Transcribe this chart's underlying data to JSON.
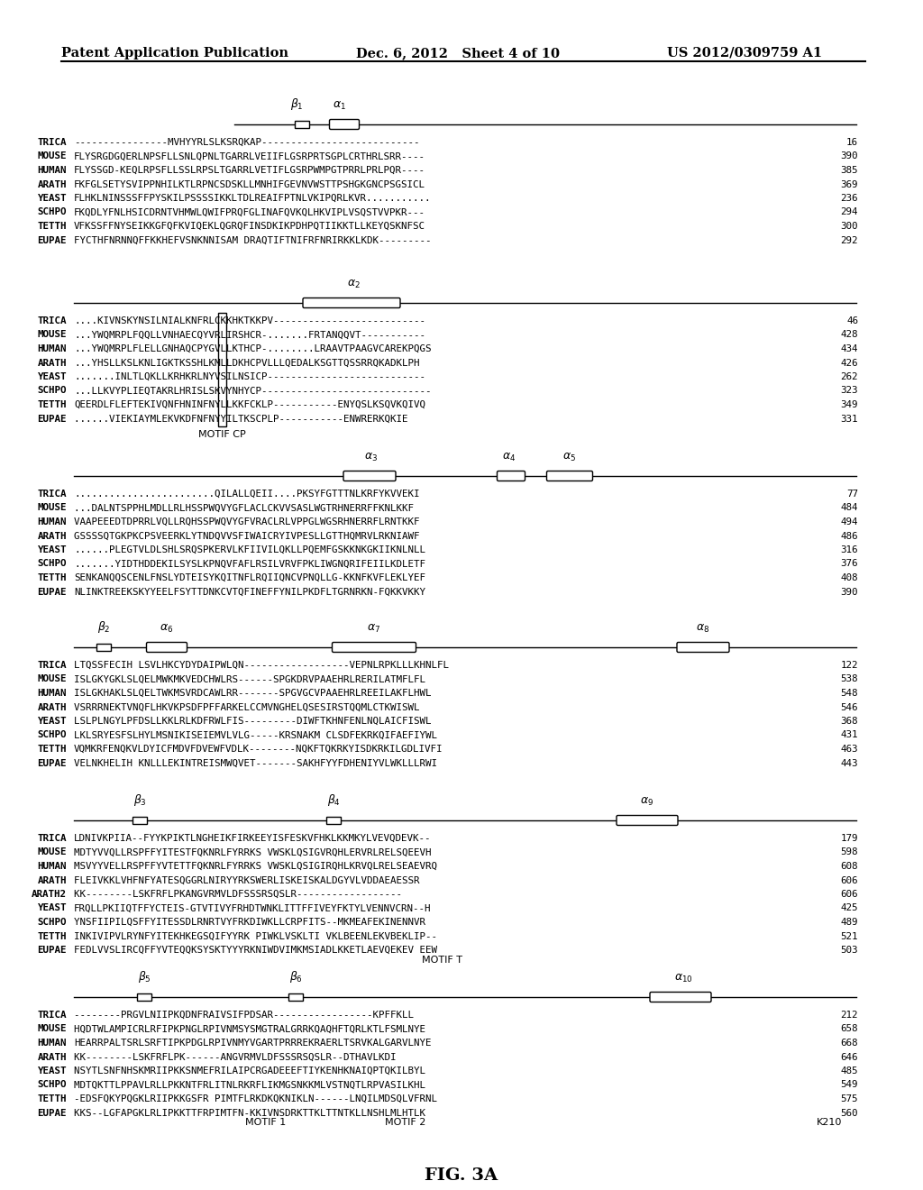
{
  "header_left": "Patent Application Publication",
  "header_center": "Dec. 6, 2012   Sheet 4 of 10",
  "header_right": "US 2012/0309759 A1",
  "figure_label": "FIG. 3A",
  "block1_seqs": [
    [
      "TRICA",
      "----------------MVHYYRLSLKSRQKAP---------------------------",
      "16"
    ],
    [
      "MOUSE",
      "FLYSRGDGQERLNPSFLLSNLQPNLTGARRLVEIIFLGSRPRTSGPLCRTHRLSRR----",
      "390"
    ],
    [
      "HUMAN",
      "FLYSSGD-KEQLRPSFLLSSLRPSLTGARRLVETIFLGSRPWMPGTPRRLPRLPQR----",
      "385"
    ],
    [
      "ARATH",
      "FKFGLSETYSVIPPNHILKTLRPNCSDSKLLMNHIFGEVNVWSTTPSHGKGNCPSGSICL",
      "369"
    ],
    [
      "YEAST",
      "FLHKLNINSSSFFPYSKILPSSSSIKKLTDLREAIFPTNLVKIPQRLKVR...........",
      "236"
    ],
    [
      "SCHPO",
      "FKQDLYFNLHSICDRNTVHMWLQWIFPRQFGLINAFQVKQLHKVIPLVSQSTVVPKR---",
      "294"
    ],
    [
      "TETTH",
      "VFKSSFFNYSEIKKGFQFKVIQEKLQGRQFINSDKIKPDHPQTIIKKTLLKEYQSKNFSC",
      "300"
    ],
    [
      "EUPAE",
      "FYCTHFNRNNQFFKKHEFVSNKNNISAM DRAQTIFTNIFRFNRIRKKLKDK---------",
      "292"
    ]
  ],
  "block2_seqs": [
    [
      "TRICA",
      "....KIVNSKYNSILNIALKNFRLCKKHKTKKPV--------------------------",
      "46"
    ],
    [
      "MOUSE",
      "...YWQMRPLFQQLLVNHAECQYVRLIRSHCR-.......FRTANQQVT-----------",
      "428"
    ],
    [
      "HUMAN",
      "...YWQMRPLFLELLGNHAQCPYGVLLKTHCP-........LRAAVTPAAGVCAREKPQGS",
      "434"
    ],
    [
      "ARATH",
      "...YHSLLKSLKNLIGKTKSSHLKMLLDKHCPVLLLQEDALKSGTTQSSRRQKADKLPH",
      "426"
    ],
    [
      "YEAST",
      ".......INLTLQKLLKRHKRLNYVSILNSICP---------------------------",
      "262"
    ],
    [
      "SCHPO",
      "...LLKVYPLIEQTAKRLHRISLSKVYNHYCP-----------------------------",
      "323"
    ],
    [
      "TETTH",
      "QEERDLFLEFTEKIVQNFHNINFNYLLKKFCKLP-----------ENYQSLKSQVKQIVQ",
      "349"
    ],
    [
      "EUPAE",
      "......VIEKIAYMLEKVKDFNFNYYILTKSCPLP-----------ENWRERKQKIE   ",
      "331"
    ]
  ],
  "block3_seqs": [
    [
      "TRICA",
      "........................QILALLQEII....PKSYFGTTTNLKRFYKVVEKI",
      "77"
    ],
    [
      "MOUSE",
      "...DALNTSPPHLMDLLRLHSSPWQVYGFLACLCKVVSASLWGTRHNERRFFKNLKKF  ",
      "484"
    ],
    [
      "HUMAN",
      "VAAPEEEDTDPRRLVQLLRQHSSPWQVYGFVRACLRLVPPGLWGSRHNERRFLRNTKKF ",
      "494"
    ],
    [
      "ARATH",
      "GSSSSQTGKPKCPSVEERKLYTNDQVVSFIWAICRYIVPESLLGTTHQMRVLRKNIAWF ",
      "486"
    ],
    [
      "YEAST",
      "......PLEGTVLDLSHLSRQSPKERVLKFIIVILQKLLPQEMFGSKKNKGKIIKNLNLL",
      "316"
    ],
    [
      "SCHPO",
      ".......YIDTHDDEKILSYSLKPNQVFAFLRSILVRVFPKLIWGNQRIFEIILKDLETF",
      "376"
    ],
    [
      "TETTH",
      "SENKANQQSCENLFNSLYDTEISYKQITNFLRQIIQNCVPNQLLG-KKNFKVFLEKLYEF",
      "408"
    ],
    [
      "EUPAE",
      "NLINKTREEKSKYYEELFSYTTDNKCVTQFINEFFYNILPKDFLTGRNRKN-FQKKVKKY",
      "390"
    ]
  ],
  "block4_seqs": [
    [
      "TRICA",
      "LTQSSFECIH LSVLHKCYDYDAIPWLQN------------------VEPNLRPKLLLKHNLFL",
      "122"
    ],
    [
      "MOUSE",
      "ISLGKYGKLSLQELMWKMKVEDCHWLRS------SPGKDRVPAAEHRLRERILATMFLFL  ",
      "538"
    ],
    [
      "HUMAN",
      "ISLGKHAKLSLQELTWKMSVRDCAWLRR-------SPGVGCVPAAEHRLREEILAKFLHWL ",
      "548"
    ],
    [
      "ARATH",
      "VSRRRNEKTVNQFLHKVKPSDFPFFARKELCCMVNGHELQSESIRSTQQMLCTKWISWL   ",
      "546"
    ],
    [
      "YEAST",
      "LSLPLNGYLPFDSLLKKLRLKDFRWLFIS---------DIWFTKHNFENLNQLAICFISWL ",
      "368"
    ],
    [
      "SCHPO",
      "LKLSRYESFSLHYLMSNIKISEIEMVLVLG-----KRSNAKM CLSDFEKRKQIFAEFIYWL",
      "431"
    ],
    [
      "TETTH",
      "VQMKRFENQKVLDYICFMDVFDVEWFVDLK--------NQKFTQKRKYISDKRKILGDLIVFI",
      "463"
    ],
    [
      "EUPAE",
      "VELNKHELIH KNLLLEKINTREISMWQVET-------SAKHFYYFDHENIYVLWKLLLRWI ",
      "443"
    ]
  ],
  "block5_seqs": [
    [
      "TRICA",
      "LDNIVKPIIA--FYYKPIKTLNGHEIKFIRKEEYISFESKVFHKLKKMKYLVEVQDEVK--",
      "179"
    ],
    [
      "MOUSE",
      "MDTYVVQLLRSPFFYITESTFQKNRLFYRRKS VWSKLQSIGVRQHLERVRLRELSQEEVH",
      "598"
    ],
    [
      "HUMAN",
      "MSVYYVELLRSPFFYVTETTFQKNRLFYRRKS VWSKLQSIGIRQHLKRVQLRELSEAEVRQ",
      "608"
    ],
    [
      "ARATH",
      "FLEIVKKLVHFNFYATESQGGRLNIRYYRKSWERLISKEISKALDGYVLVDDAEAESSR  ",
      "606"
    ],
    [
      "ARATH2",
      "KK--------LSKFRFLPKANGVRMVLDFSSSRSQSLR------------------       ",
      "606"
    ],
    [
      "YEAST",
      "FRQLLPKIIQTFFYCTEIS-GTVTIVYFRHDTWNKLITTFFIVEYFKTYLVENNVCRN--H",
      "425"
    ],
    [
      "SCHPO",
      "YNSFIIPILQSFFYITESSDLRNRTVYFRKDIWKLLCRPFITS--MKMEAFEKINENNVR ",
      "489"
    ],
    [
      "TETTH",
      "INKIVIPVLRYNFYITEKHKEGSQIFYYRK PIWKLVSKLTI VKLBEENLEKVBEKLIP-- ",
      "521"
    ],
    [
      "EUPAE",
      "FEDLVVSLIRCQFFYVTEQQKSYSKTYYYRKNIWDVIMKMSIADLKKETLAEVQEKEV EEW",
      "503"
    ]
  ],
  "block6_seqs": [
    [
      "TRICA",
      "--------PRGVLNIIPKQDNFRAIVSIFPDSAR-----------------KPFFKLL   ",
      "212"
    ],
    [
      "MOUSE",
      "HQDTWLAMPICRLRFIPKPNGLRPIVNMSYSMGTRALGRRKQAQHFTQRLKTLFSMLNYE ",
      "658"
    ],
    [
      "HUMAN",
      "HEARRPALTSRLSRFTIPKPDGLRPIVNMYVGARTPRRREKRAERLTSRVKALGARVLNYE",
      "668"
    ],
    [
      "ARATH",
      "KK--------LSKFRFLPK------ANGVRMVLDFSSSRSQSLR--DTHAVLKDI       ",
      "646"
    ],
    [
      "YEAST",
      "NSYTLSNFNHSKMRIIPKKSNMEFRILAIPCRGADEEEFTIYKENHKNAIQPTQKILBYL  ",
      "485"
    ],
    [
      "SCHPO",
      "MDTQKTTLPPAVLRLLPKKNTFRLITNLRKRFLIKMGSNKKMLVSTNQTLRPVASILKHL ",
      "549"
    ],
    [
      "TETTH",
      "-EDSFQKYPQGKLRIIPKKGSFR PIMTFLRKDKQKNIKLN------LNQILMDSQLVFRNL",
      "575"
    ],
    [
      "EUPAE",
      "KKS--LGFAPGKLRLIPKKTTFRPIMTFN-KKIVNSDRKTTKLTTNTKLLNSHLMLHTLK ",
      "560"
    ]
  ]
}
